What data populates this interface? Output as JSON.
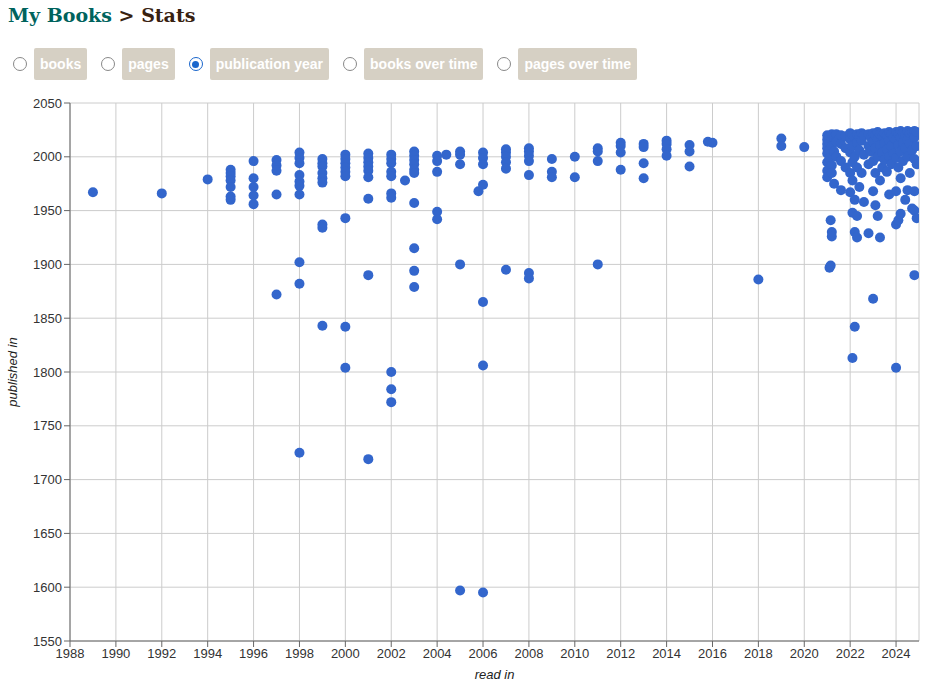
{
  "header": {
    "link": "My Books",
    "separator": ">",
    "current": "Stats"
  },
  "tabs": {
    "options": [
      "books",
      "pages",
      "publication year",
      "books over time",
      "pages over time"
    ],
    "selected": "publication year"
  },
  "chart_data": {
    "type": "scatter",
    "x_label": "read in",
    "y_label": "published in",
    "color": "#3366cc",
    "marker": "circle",
    "grid": true,
    "xlim": [
      1988,
      2025
    ],
    "xticks": [
      1988,
      1990,
      1992,
      1994,
      1996,
      1998,
      2000,
      2002,
      2004,
      2006,
      2008,
      2010,
      2012,
      2014,
      2016,
      2018,
      2020,
      2022,
      2024
    ],
    "ylim": [
      1550,
      2050
    ],
    "yticks": [
      1550,
      1600,
      1650,
      1700,
      1750,
      1800,
      1850,
      1900,
      1950,
      2000,
      2050
    ],
    "x": [
      1989,
      1992,
      1994,
      1995,
      1995,
      1995,
      1995,
      1995,
      1995,
      1995,
      1996,
      1996,
      1996,
      1996,
      1996,
      1997,
      1997,
      1997,
      1997,
      1997,
      1998,
      1998,
      1998,
      1998,
      1998,
      1998,
      1998,
      1998,
      1998,
      1998,
      1999,
      1999,
      1999,
      1999,
      1999,
      1999,
      1999,
      1999,
      1999,
      2000,
      2000,
      2000,
      2000,
      2000,
      2000,
      2000,
      2000,
      2000,
      2001,
      2001,
      2001,
      2001,
      2001,
      2001,
      2001,
      2001,
      2001,
      2002,
      2002,
      2002,
      2002,
      2002,
      2002,
      2002,
      2002,
      2002,
      2002,
      2002.6,
      2003,
      2003,
      2003,
      2003,
      2003,
      2003,
      2003,
      2003,
      2003,
      2003,
      2004,
      2004,
      2004,
      2004,
      2004,
      2004.4,
      2005,
      2005,
      2005,
      2005,
      2005,
      2005.8,
      2006,
      2006,
      2006,
      2006,
      2006,
      2006,
      2006,
      2007,
      2007,
      2007,
      2007,
      2007,
      2007,
      2008,
      2008,
      2008,
      2008,
      2008,
      2008,
      2008,
      2009,
      2009,
      2009,
      2010,
      2010,
      2011,
      2011,
      2011,
      2011,
      2012,
      2012,
      2012,
      2012,
      2013,
      2013,
      2013,
      2013,
      2014,
      2014,
      2014,
      2014,
      2015,
      2015,
      2015,
      2015.8,
      2016,
      2018,
      2019,
      2019,
      2020,
      2021.0,
      2021.0,
      2021.0,
      2021.0,
      2021.0,
      2021.0,
      2021.0,
      2021.0,
      2021.1,
      2021.1,
      2021.1,
      2021.1,
      2021.1,
      2021.1,
      2021.15,
      2021.2,
      2021.2,
      2021.2,
      2021.2,
      2021.2,
      2021.2,
      2021.15,
      2021.3,
      2021.3,
      2021.3,
      2021.4,
      2021.4,
      2021.4,
      2021.6,
      2021.6,
      2021.6,
      2021.6,
      2021.8,
      2021.8,
      2021.8,
      2022.0,
      2022.0,
      2022.0,
      2022.0,
      2022.0,
      2022.1,
      2022.1,
      2022.1,
      2022.1,
      2022.1,
      2022.1,
      2022.2,
      2022.2,
      2022.2,
      2022.2,
      2022.2,
      2022.3,
      2022.3,
      2022.3,
      2022.3,
      2022.3,
      2022.4,
      2022.4,
      2022.4,
      2022.5,
      2022.5,
      2022.5,
      2022.6,
      2022.6,
      2022.6,
      2022.8,
      2022.8,
      2022.8,
      2022.8,
      2022.9,
      2022.9,
      2023.0,
      2023.0,
      2023.0,
      2023.0,
      2023.0,
      2023.1,
      2023.1,
      2023.1,
      2023.1,
      2023.2,
      2023.2,
      2023.2,
      2023.2,
      2023.3,
      2023.3,
      2023.3,
      2023.3,
      2023.4,
      2023.4,
      2023.4,
      2023.5,
      2023.5,
      2023.5,
      2023.6,
      2023.6,
      2023.6,
      2023.7,
      2023.7,
      2023.7,
      2023.7,
      2023.8,
      2023.8,
      2023.8,
      2023.9,
      2023.9,
      2024.0,
      2024.0,
      2024.0,
      2024.0,
      2024.0,
      2024.0,
      2024.1,
      2024.1,
      2024.1,
      2024.1,
      2024.2,
      2024.2,
      2024.2,
      2024.2,
      2024.2,
      2024.3,
      2024.3,
      2024.3,
      2024.4,
      2024.4,
      2024.4,
      2024.5,
      2024.5,
      2024.5,
      2024.5,
      2024.6,
      2024.6,
      2024.6,
      2024.7,
      2024.7,
      2024.7,
      2024.8,
      2024.8,
      2024.8,
      2024.8,
      2024.8,
      2024.8,
      2024.9,
      2024.9,
      2024.9,
      2024.9
    ],
    "values": [
      1967,
      1966,
      1979,
      1988,
      1985,
      1982,
      1978,
      1972,
      1963,
      1960,
      1996,
      1980,
      1972,
      1964,
      1956,
      1997,
      1992,
      1987,
      1965,
      1872,
      2004,
      1999,
      1994,
      1983,
      1977,
      1973,
      1965,
      1902,
      1882,
      1725,
      1998,
      1994,
      1991,
      1985,
      1980,
      1976,
      1937,
      1934,
      1843,
      2002,
      1998,
      1994,
      1990,
      1986,
      1982,
      1943,
      1842,
      1804,
      2003,
      1999,
      1995,
      1991,
      1987,
      1981,
      1961,
      1890,
      1719,
      2002,
      1998,
      1994,
      1986,
      1982,
      1966,
      1962,
      1800,
      1784,
      1772,
      1978,
      2005,
      2001,
      1997,
      1993,
      1988,
      1985,
      1957,
      1915,
      1894,
      1879,
      2001,
      1996,
      1986,
      1949,
      1942,
      2002,
      2005,
      2002,
      1993,
      1900,
      1597,
      1968,
      2004,
      1999,
      1993,
      1974,
      1865,
      1806,
      1595,
      2007,
      2004,
      2000,
      1995,
      1989,
      1895,
      2008,
      2005,
      2001,
      1996,
      1983,
      1892,
      1887,
      1998,
      1986,
      1981,
      2000,
      1981,
      2008,
      2005,
      1996,
      1900,
      2013,
      2010,
      2004,
      1988,
      2012,
      2009,
      1994,
      1980,
      2015,
      2012,
      2007,
      2001,
      2011,
      2005,
      1991,
      2014,
      2013,
      1886,
      2017,
      2010,
      2009,
      2020,
      2016,
      2012,
      2008,
      2003,
      1995,
      1987,
      1981,
      2019,
      2013,
      2006,
      1999,
      1990,
      1897,
      1899,
      2021,
      2010,
      1992,
      1985,
      1930,
      1926,
      1941,
      2018,
      2005,
      1975,
      2021,
      2014,
      2000,
      2020,
      2012,
      1996,
      1969,
      2019,
      2008,
      1990,
      2022,
      2016,
      2004,
      1985,
      1967,
      2020,
      2010,
      1995,
      1978,
      1948,
      1813,
      2018,
      2000,
      1960,
      1930,
      1842,
      2021,
      2013,
      1990,
      1925,
      1945,
      2019,
      2006,
      1972,
      2022,
      2015,
      1985,
      2020,
      2002,
      1958,
      2021,
      2010,
      1993,
      1929,
      2018,
      2005,
      2022,
      2014,
      1996,
      1968,
      1868,
      2020,
      2008,
      1985,
      1955,
      2023,
      2016,
      2000,
      1945,
      2021,
      2011,
      1925,
      1978,
      2019,
      2004,
      1990,
      2022,
      2013,
      1997,
      2020,
      2007,
      1986,
      2023,
      2015,
      2000,
      1965,
      2021,
      2010,
      1993,
      2018,
      2003,
      2023,
      2016,
      1999,
      1968,
      1937,
      1804,
      2021,
      2011,
      1990,
      1941,
      2024,
      2018,
      2005,
      1980,
      1947,
      2022,
      2013,
      1996,
      2020,
      2008,
      1960,
      2024,
      2016,
      2000,
      1969,
      2022,
      2012,
      1985,
      2023,
      2006,
      1952,
      2024,
      2018,
      1998,
      1968,
      1950,
      1890,
      2023,
      2010,
      1993,
      1943
    ]
  }
}
